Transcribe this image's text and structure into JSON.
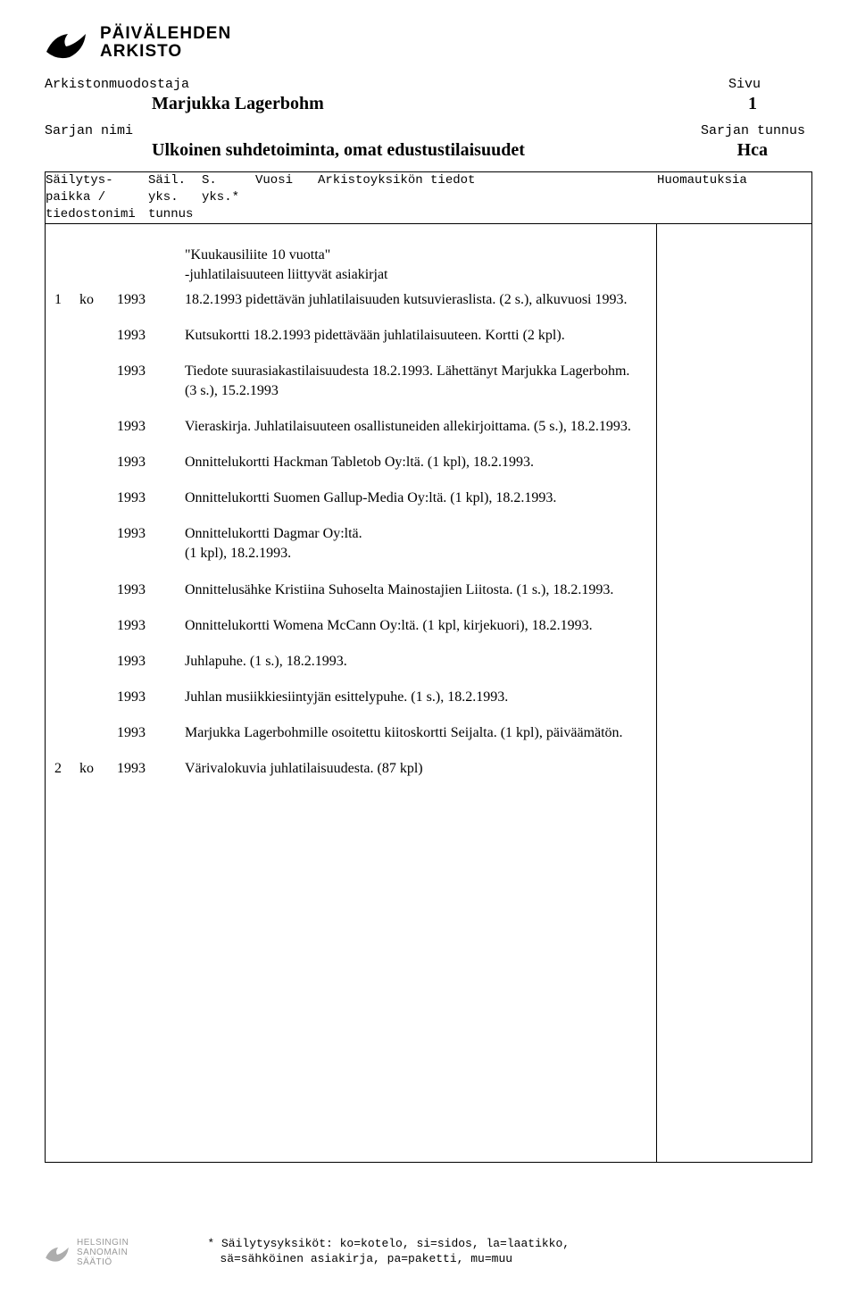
{
  "header": {
    "org_line1": "PÄIVÄLEHDEN",
    "org_line2": "ARKISTO",
    "label_arkistonmuodostaja": "Arkistonmuodostaja",
    "label_sivu": "Sivu",
    "title": "Marjukka Lagerbohm",
    "page_number": "1",
    "label_sarjan_nimi": "Sarjan nimi",
    "label_sarjan_tunnus": "Sarjan tunnus",
    "series_name": "Ulkoinen suhdetoiminta, omat edustustilaisuudet",
    "series_code": "Hca"
  },
  "columns": {
    "c1": "Säilytys-\npaikka /\ntiedostonimi",
    "c2": "Säil.\nyks.\ntunnus",
    "c3": "S.\nyks.*",
    "c4": "Vuosi",
    "c5": "Arkistoyksikön tiedot",
    "c6": "Huomautuksia"
  },
  "intro": "\"Kuukausiliite 10 vuotta\"\n-juhlatilaisuuteen liittyvät asiakirjat",
  "rows": [
    {
      "n": "1",
      "u": "ko",
      "y": "1993",
      "d": "18.2.1993 pidettävän juhlatilaisuuden kutsuvieraslista. (2 s.), alkuvuosi 1993."
    },
    {
      "n": "",
      "u": "",
      "y": "1993",
      "d": "Kutsukortti 18.2.1993 pidettävään juhlatilaisuuteen. Kortti (2 kpl)."
    },
    {
      "n": "",
      "u": "",
      "y": "1993",
      "d": "Tiedote suurasiakastilaisuudesta 18.2.1993. Lähettänyt Marjukka Lagerbohm.\n(3 s.), 15.2.1993"
    },
    {
      "n": "",
      "u": "",
      "y": "1993",
      "d": "Vieraskirja. Juhlatilaisuuteen osallistuneiden allekirjoittama. (5 s.), 18.2.1993."
    },
    {
      "n": "",
      "u": "",
      "y": "1993",
      "d": "Onnittelukortti Hackman Tabletob Oy:ltä. (1 kpl), 18.2.1993."
    },
    {
      "n": "",
      "u": "",
      "y": "1993",
      "d": "Onnittelukortti Suomen Gallup-Media Oy:ltä. (1 kpl), 18.2.1993."
    },
    {
      "n": "",
      "u": "",
      "y": "1993",
      "d": "Onnittelukortti Dagmar Oy:ltä.\n(1 kpl), 18.2.1993."
    },
    {
      "n": "",
      "u": "",
      "y": "1993",
      "d": "Onnittelusähke Kristiina Suhoselta Mainostajien Liitosta. (1 s.), 18.2.1993."
    },
    {
      "n": "",
      "u": "",
      "y": "1993",
      "d": "Onnittelukortti Womena McCann Oy:ltä. (1 kpl, kirjekuori), 18.2.1993."
    },
    {
      "n": "",
      "u": "",
      "y": "1993",
      "d": "Juhlapuhe. (1 s.), 18.2.1993."
    },
    {
      "n": "",
      "u": "",
      "y": "1993",
      "d": "Juhlan musiikkiesiintyjän esittelypuhe. (1 s.), 18.2.1993."
    },
    {
      "n": "",
      "u": "",
      "y": "1993",
      "d": "Marjukka Lagerbohmille osoitettu kiitoskortti Seijalta. (1 kpl), päiväämätön."
    },
    {
      "n": "2",
      "u": "ko",
      "y": "1993",
      "d": "Värivalokuvia juhlatilaisuudesta. (87 kpl)"
    }
  ],
  "footer": {
    "org1": "HELSINGIN",
    "org2": "SANOMAIN",
    "org3": "SÄÄTIÖ",
    "note1": "* Säilytysyksiköt: ko=kotelo, si=sidos, la=laatikko,",
    "note2": "sä=sähköinen asiakirja, pa=paketti, mu=muu"
  }
}
